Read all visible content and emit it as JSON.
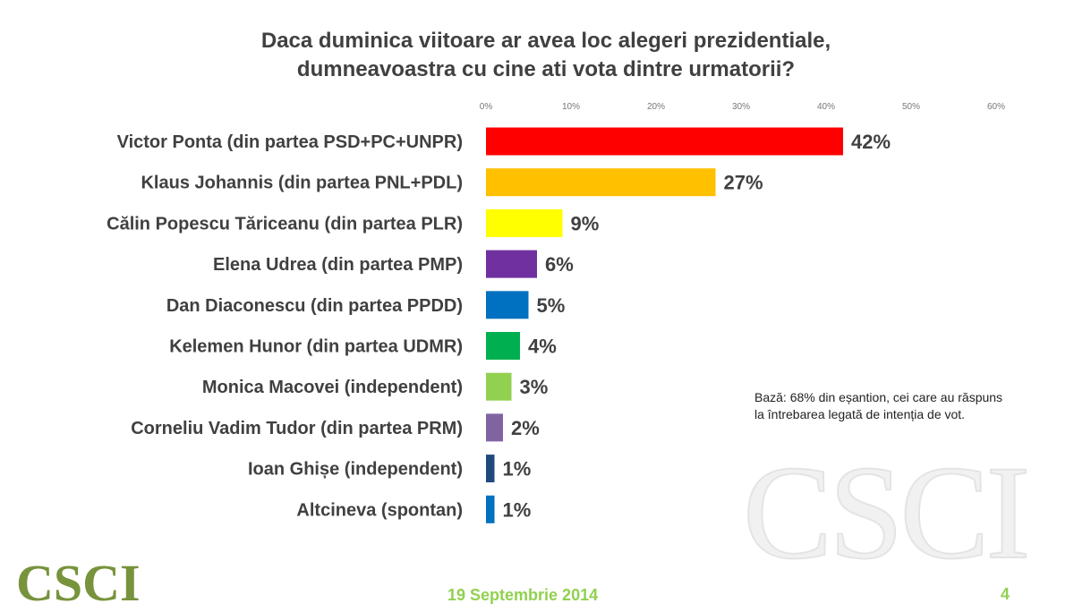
{
  "chart_data": {
    "type": "bar",
    "orientation": "horizontal",
    "title": "Daca duminica viitoare ar avea loc alegeri prezidentiale, dumneavoastra cu cine ati vota dintre urmatorii?",
    "title_lines": [
      "Daca duminica viitoare ar avea loc alegeri prezidentiale,",
      "dumneavoastra cu cine ati vota dintre urmatorii?"
    ],
    "categories": [
      "Victor Ponta (din partea PSD+PC+UNPR)",
      "Klaus Johannis (din partea PNL+PDL)",
      "Călin Popescu Tăriceanu (din partea PLR)",
      "Elena Udrea (din partea PMP)",
      "Dan Diaconescu (din partea PPDD)",
      "Kelemen Hunor (din partea UDMR)",
      "Monica Macovei (independent)",
      "Corneliu Vadim Tudor (din partea PRM)",
      "Ioan Ghișe (independent)",
      "Altcineva (spontan)"
    ],
    "values": [
      42,
      27,
      9,
      6,
      5,
      4,
      3,
      2,
      1,
      1
    ],
    "data_labels": [
      "42%",
      "27%",
      "9%",
      "6%",
      "5%",
      "4%",
      "3%",
      "2%",
      "1%",
      "1%"
    ],
    "colors": [
      "#ff0000",
      "#ffc000",
      "#ffff00",
      "#7030a0",
      "#0070c0",
      "#00b050",
      "#92d050",
      "#8064a2",
      "#1f497d",
      "#0070c0"
    ],
    "xlim": [
      0,
      60
    ],
    "xticks": [
      0,
      10,
      20,
      30,
      40,
      50,
      60
    ],
    "xtick_labels": [
      "0%",
      "10%",
      "20%",
      "30%",
      "40%",
      "50%",
      "60%"
    ],
    "axis_position": "top",
    "grid": false
  },
  "note": "Bază: 68% din eșantion, cei care au răspuns la întrebarea legată de intenția de vot.",
  "footer": {
    "logo": "CSCI",
    "date": "19 Septembrie 2014",
    "page": "4",
    "watermark": "CSCI"
  }
}
